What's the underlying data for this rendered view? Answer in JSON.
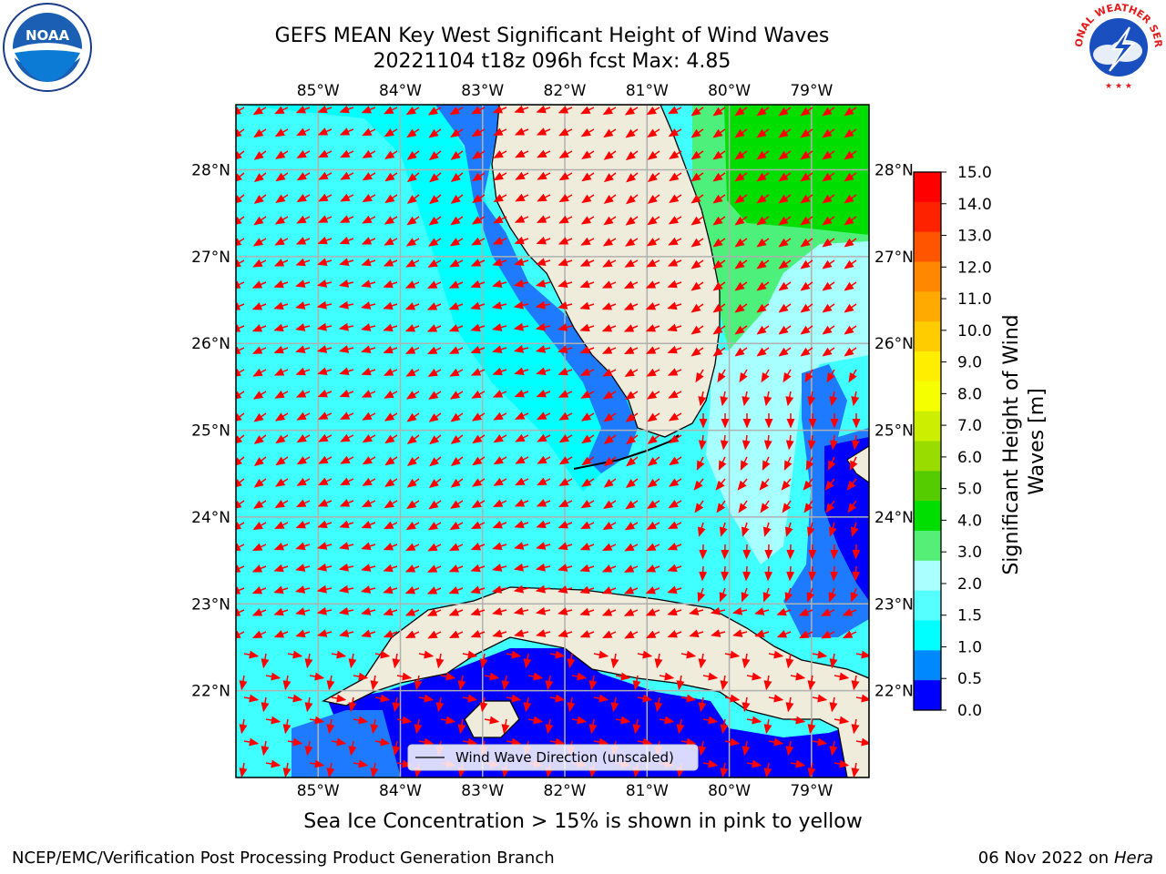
{
  "title": {
    "line1": "GEFS MEAN Key West Significant Height of Wind Waves",
    "line2": "20221104 t18z 096h fcst   Max: 4.85"
  },
  "map": {
    "lon_ticks": [
      "85°W",
      "84°W",
      "83°W",
      "82°W",
      "81°W",
      "80°W",
      "79°W"
    ],
    "lat_ticks": [
      "28°N",
      "27°N",
      "26°N",
      "25°N",
      "24°N",
      "23°N",
      "22°N"
    ],
    "lon_values": [
      -85,
      -84,
      -83,
      -82,
      -81,
      -80,
      -79
    ],
    "lat_values": [
      28,
      27,
      26,
      25,
      24,
      23,
      22
    ],
    "lon_range": [
      -86.0,
      -78.3
    ],
    "lat_range": [
      21.0,
      28.75
    ],
    "legend_label": "Wind Wave Direction (unscaled)",
    "arrow_color": "#ff0000",
    "land_color": "#efecdc",
    "grid": true
  },
  "colorbar": {
    "label": "Significant Height of Wind Waves [m]",
    "ticks": [
      "15.0",
      "14.0",
      "13.0",
      "12.0",
      "11.0",
      "10.0",
      "9.0",
      "8.0",
      "7.0",
      "6.0",
      "5.0",
      "4.0",
      "3.0",
      "2.0",
      "1.5",
      "1.0",
      "0.5",
      "0.0"
    ],
    "colors_top_to_bottom": [
      "#ff0000",
      "#ff2200",
      "#ff5500",
      "#ff8800",
      "#ffaa00",
      "#ffcc00",
      "#ffee00",
      "#f5ff00",
      "#ccee00",
      "#99dd00",
      "#55cc00",
      "#00dd00",
      "#55ee77",
      "#aaffff",
      "#55ffff",
      "#00ffff",
      "#0088ff",
      "#0000ff"
    ]
  },
  "logos": {
    "left": "NOAA",
    "right_text": "NATIONAL WEATHER SERVICE"
  },
  "footer": {
    "note": "Sea Ice Concentration > 15% is shown in pink to yellow",
    "left": "NCEP/EMC/Verification Post Processing Product Generation Branch",
    "right_date": "06 Nov 2022 on",
    "right_host": "Hera"
  }
}
